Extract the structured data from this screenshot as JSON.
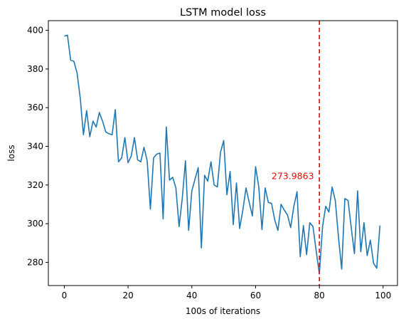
{
  "chart_data": {
    "type": "line",
    "title": "LSTM model loss",
    "xlabel": "100s of iterations",
    "ylabel": "loss",
    "xlim": [
      -5,
      104.5
    ],
    "ylim": [
      268,
      405
    ],
    "xticks": [
      0,
      20,
      40,
      60,
      80,
      100
    ],
    "yticks": [
      280,
      300,
      320,
      340,
      360,
      380,
      400
    ],
    "grid": false,
    "legend": "none",
    "series": [
      {
        "color": "#1f77b4",
        "x": [
          0,
          1,
          2,
          3,
          4,
          5,
          6,
          7,
          8,
          9,
          10,
          11,
          12,
          13,
          14,
          15,
          16,
          17,
          18,
          19,
          20,
          21,
          22,
          23,
          24,
          25,
          26,
          27,
          28,
          29,
          30,
          31,
          32,
          33,
          34,
          35,
          36,
          37,
          38,
          39,
          40,
          41,
          42,
          43,
          44,
          45,
          46,
          47,
          48,
          49,
          50,
          51,
          52,
          53,
          54,
          55,
          56,
          57,
          58,
          59,
          60,
          61,
          62,
          63,
          64,
          65,
          66,
          67,
          68,
          69,
          70,
          71,
          72,
          73,
          74,
          75,
          76,
          77,
          78,
          79,
          80,
          81,
          82,
          83,
          84,
          85,
          86,
          87,
          88,
          89,
          90,
          91,
          92,
          93,
          94,
          95,
          96,
          97,
          98,
          99
        ],
        "values": [
          397,
          397.5,
          384.5,
          384,
          378,
          365,
          346,
          358.5,
          345,
          353,
          350,
          357.5,
          353,
          347.5,
          346.5,
          346,
          359,
          332,
          334,
          344.5,
          331.5,
          335,
          344.5,
          333,
          332,
          339.5,
          332.5,
          307.5,
          334,
          336,
          336.5,
          302.5,
          350,
          322.5,
          324,
          318.5,
          298.5,
          313,
          332.5,
          296.5,
          317,
          323,
          329,
          287.5,
          325,
          322,
          332,
          320,
          319,
          337,
          343,
          315,
          327,
          299.5,
          321,
          297.5,
          307,
          318.5,
          311,
          304,
          329.5,
          319,
          297,
          318.5,
          311,
          310.5,
          302,
          296.5,
          310,
          307,
          304.5,
          298,
          309,
          316.5,
          283,
          299,
          284,
          300.5,
          298.5,
          286,
          274,
          298.5,
          309,
          306,
          319,
          312,
          293,
          276.5,
          313,
          312,
          298,
          284.5,
          317,
          285.5,
          300.5,
          283.5,
          291.5,
          279.5,
          277,
          299
        ]
      }
    ],
    "vline": {
      "x": 80,
      "color": "#ff0000",
      "style": "dashed"
    },
    "annotations": [
      {
        "text": "273.9863",
        "x": 65,
        "y": 323,
        "color": "#ff0000"
      }
    ]
  }
}
